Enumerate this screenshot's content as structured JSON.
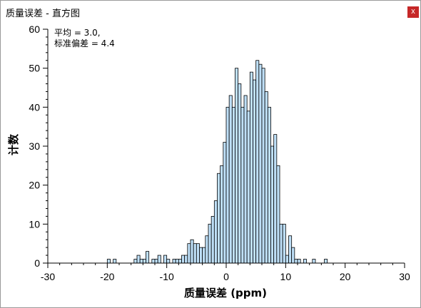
{
  "window": {
    "title": "质量误差 - 直方图",
    "close_label": "x"
  },
  "chart_data": {
    "type": "bar",
    "title": "",
    "xlabel": "质量误差 (ppm)",
    "ylabel": "计数",
    "xlim": [
      -30,
      30
    ],
    "ylim": [
      0,
      60
    ],
    "xticks": [
      "-30",
      "-20",
      "-10",
      "0",
      "10",
      "20",
      "30"
    ],
    "yticks": [
      "0",
      "10",
      "20",
      "30",
      "40",
      "50",
      "60"
    ],
    "annotation": [
      "平均 = 3.0,",
      "标准偏差 = 4.4"
    ],
    "bar_color": "#bfe0f8",
    "bin_width": 0.5,
    "bins": [
      [
        -20.0,
        1
      ],
      [
        -19.0,
        1
      ],
      [
        -15.5,
        1
      ],
      [
        -15.0,
        2
      ],
      [
        -14.5,
        1
      ],
      [
        -14.0,
        1
      ],
      [
        -13.5,
        3
      ],
      [
        -12.5,
        1
      ],
      [
        -12.0,
        1
      ],
      [
        -11.5,
        2
      ],
      [
        -10.5,
        2
      ],
      [
        -10.0,
        1
      ],
      [
        -9.0,
        1
      ],
      [
        -8.5,
        1
      ],
      [
        -8.0,
        1
      ],
      [
        -7.5,
        2
      ],
      [
        -7.0,
        2
      ],
      [
        -6.5,
        5
      ],
      [
        -6.0,
        6
      ],
      [
        -5.5,
        5
      ],
      [
        -5.0,
        5
      ],
      [
        -4.5,
        4
      ],
      [
        -4.0,
        4
      ],
      [
        -3.5,
        7
      ],
      [
        -3.0,
        10
      ],
      [
        -2.5,
        12
      ],
      [
        -2.0,
        16
      ],
      [
        -1.5,
        23
      ],
      [
        -1.0,
        25
      ],
      [
        -0.5,
        31
      ],
      [
        0.0,
        40
      ],
      [
        0.5,
        43
      ],
      [
        1.0,
        40
      ],
      [
        1.5,
        50
      ],
      [
        2.0,
        46
      ],
      [
        2.5,
        40
      ],
      [
        3.0,
        43
      ],
      [
        3.5,
        39
      ],
      [
        4.0,
        49
      ],
      [
        4.5,
        47
      ],
      [
        5.0,
        52
      ],
      [
        5.5,
        51
      ],
      [
        6.0,
        50
      ],
      [
        6.5,
        44
      ],
      [
        7.0,
        40
      ],
      [
        7.5,
        30
      ],
      [
        8.0,
        33
      ],
      [
        8.5,
        25
      ],
      [
        9.0,
        10
      ],
      [
        9.5,
        10
      ],
      [
        10.0,
        2
      ],
      [
        10.5,
        7
      ],
      [
        11.0,
        4
      ],
      [
        11.5,
        1
      ],
      [
        12.0,
        1
      ],
      [
        13.0,
        1
      ],
      [
        14.5,
        1
      ],
      [
        16.5,
        1
      ]
    ]
  }
}
